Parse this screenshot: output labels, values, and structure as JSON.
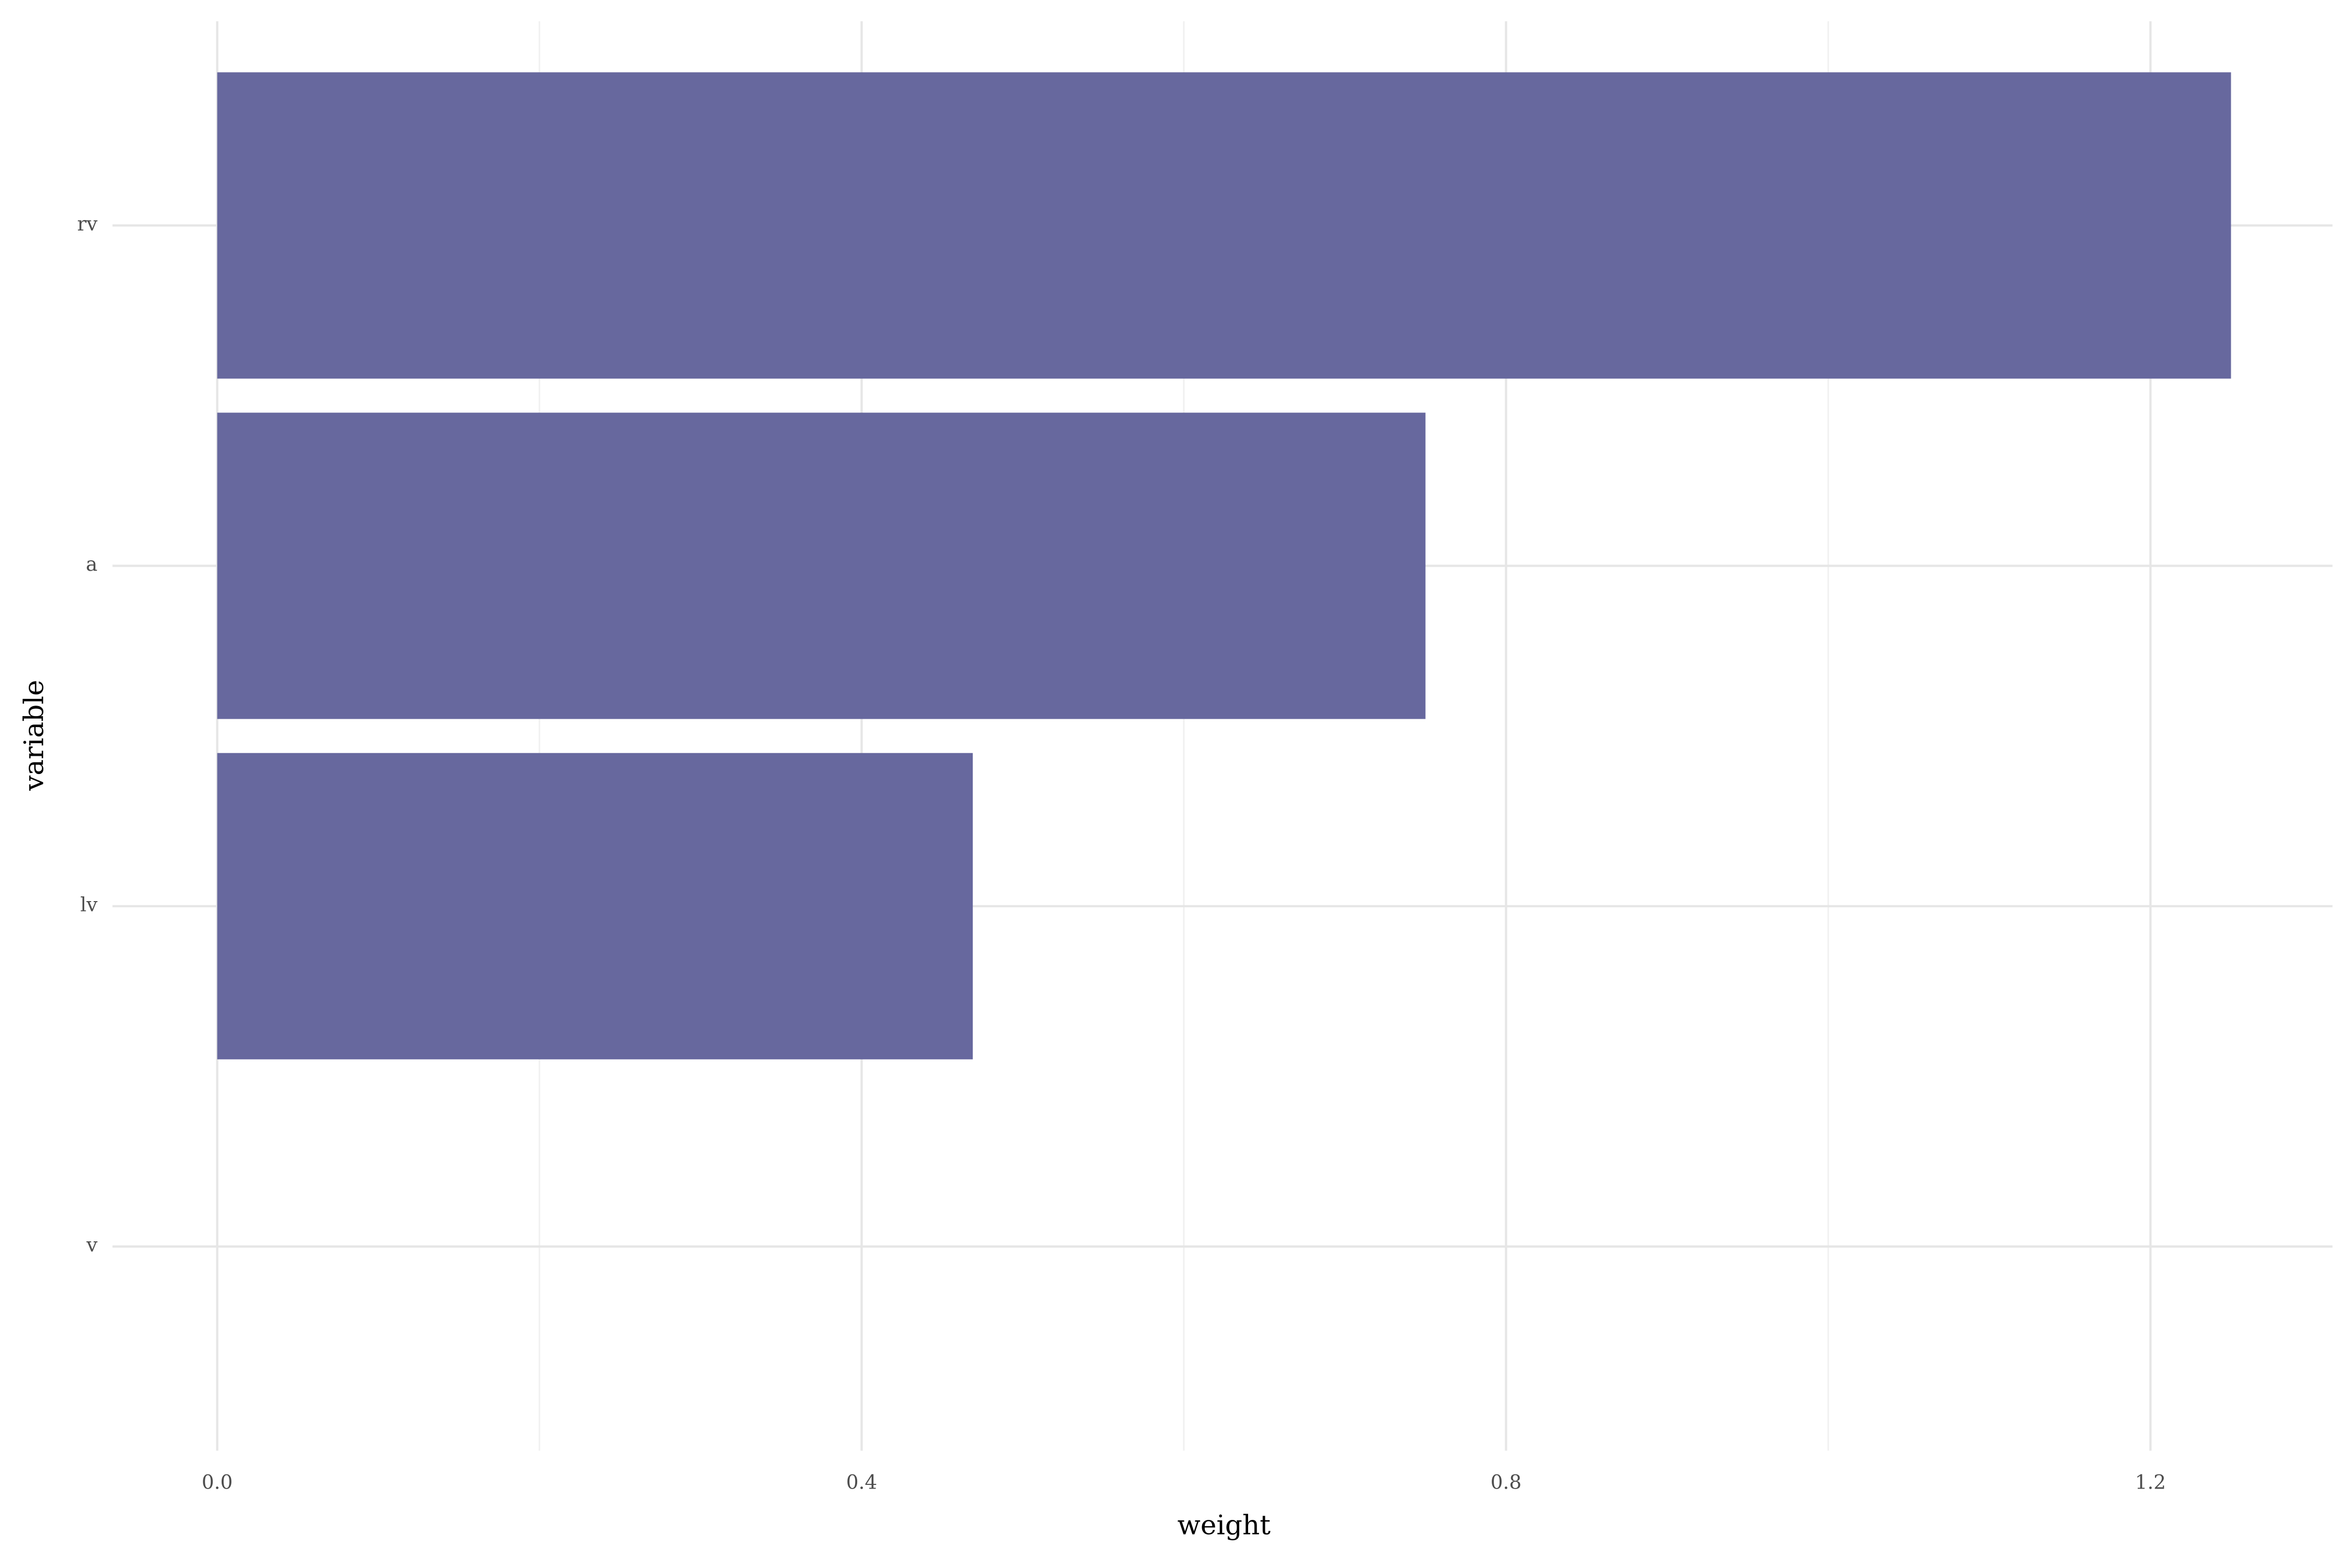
{
  "chart_data": {
    "type": "hbar",
    "categories": [
      "rv",
      "a",
      "lv",
      "v"
    ],
    "values": [
      1.25,
      0.75,
      0.469,
      0
    ],
    "color": "#67689e",
    "xlabel": "weight",
    "ylabel": "variable",
    "xlim": [
      -0.065,
      1.313
    ],
    "xticks": [
      {
        "value": 0,
        "label": "0.0"
      },
      0.4,
      0.8,
      1.2
    ],
    "xminor": [
      0.2,
      0.6,
      1.0
    ],
    "grid": true
  }
}
